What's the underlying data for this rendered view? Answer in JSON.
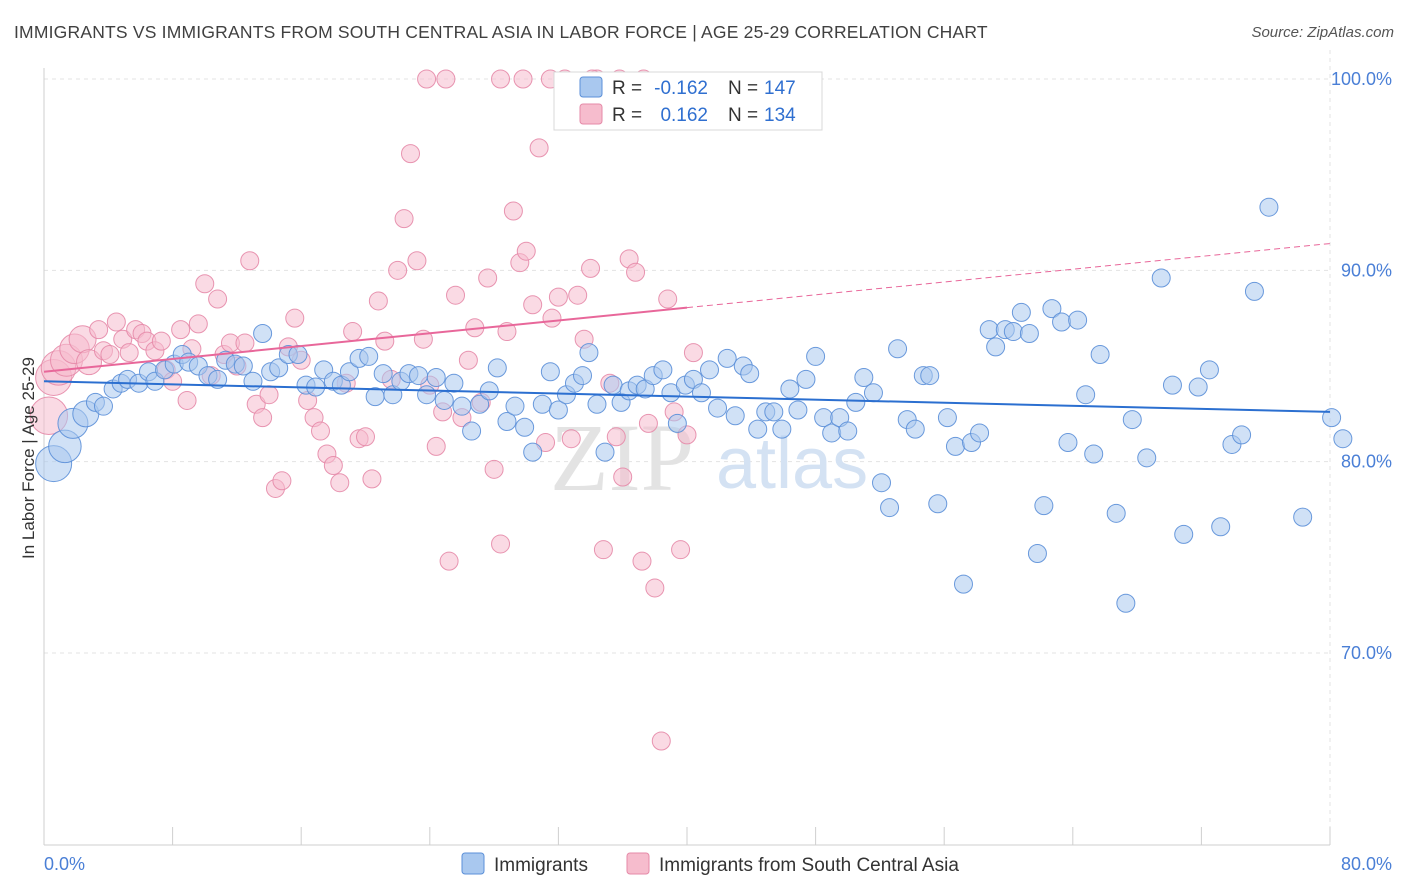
{
  "title": "IMMIGRANTS VS IMMIGRANTS FROM SOUTH CENTRAL ASIA IN LABOR FORCE | AGE 25-29 CORRELATION CHART",
  "source": "Source: ZipAtlas.com",
  "watermark": {
    "zip": "ZIP",
    "atlas": "atlas"
  },
  "colors": {
    "blue_fill": "#a9c8ef",
    "blue_stroke": "#5b8fd8",
    "blue_line": "#2b6fd0",
    "pink_fill": "#f6bccd",
    "pink_stroke": "#e58aa8",
    "pink_line": "#e8679a",
    "tick_text": "#4a7fd6",
    "grid": "#e3e3e3"
  },
  "legend_top": {
    "rows": [
      {
        "r_label": "R =",
        "r_value": "-0.162",
        "n_label": "N =",
        "n_value": "147"
      },
      {
        "r_label": "R =",
        "r_value": "0.162",
        "n_label": "N =",
        "n_value": "134"
      }
    ]
  },
  "chart_data": {
    "type": "scatter",
    "title": "IMMIGRANTS VS IMMIGRANTS FROM SOUTH CENTRAL ASIA IN LABOR FORCE | AGE 25-29 CORRELATION CHART",
    "xlabel": "",
    "ylabel": "In Labor Force | Age 25-29",
    "xlim": [
      0,
      80
    ],
    "ylim": [
      60,
      102
    ],
    "x_tick_labels": [
      "0.0%",
      "80.0%"
    ],
    "y_ticks": [
      70,
      80,
      90,
      100
    ],
    "y_tick_labels": [
      "70.0%",
      "80.0%",
      "90.0%",
      "100.0%"
    ],
    "grid": true,
    "legend_position": "bottom-center",
    "series": [
      {
        "name": "Immigrants",
        "color": "#5b8fd8",
        "r": "-0.162",
        "n": "147",
        "trend": {
          "x": [
            0,
            80
          ],
          "y": [
            84.2,
            82.6
          ],
          "style": "solid"
        },
        "points": [
          [
            0.6,
            79.9
          ],
          [
            1.3,
            80.8
          ],
          [
            1.8,
            82.0
          ],
          [
            2.6,
            82.5
          ],
          [
            3.2,
            83.1
          ],
          [
            3.7,
            82.9
          ],
          [
            4.3,
            83.8
          ],
          [
            4.8,
            84.1
          ],
          [
            5.2,
            84.3
          ],
          [
            5.9,
            84.1
          ],
          [
            6.5,
            84.7
          ],
          [
            6.9,
            84.2
          ],
          [
            7.5,
            84.8
          ],
          [
            8.1,
            85.1
          ],
          [
            8.6,
            85.6
          ],
          [
            9.0,
            85.2
          ],
          [
            9.6,
            85.0
          ],
          [
            10.2,
            84.5
          ],
          [
            10.8,
            84.3
          ],
          [
            11.3,
            85.3
          ],
          [
            11.9,
            85.1
          ],
          [
            12.4,
            85.0
          ],
          [
            13.0,
            84.2
          ],
          [
            13.6,
            86.7
          ],
          [
            14.1,
            84.7
          ],
          [
            14.6,
            84.9
          ],
          [
            15.2,
            85.6
          ],
          [
            15.8,
            85.6
          ],
          [
            16.3,
            84.0
          ],
          [
            16.9,
            83.9
          ],
          [
            17.4,
            84.8
          ],
          [
            18.0,
            84.2
          ],
          [
            18.5,
            84.0
          ],
          [
            19.0,
            84.7
          ],
          [
            19.6,
            85.4
          ],
          [
            20.2,
            85.5
          ],
          [
            20.6,
            83.4
          ],
          [
            21.1,
            84.6
          ],
          [
            21.7,
            83.5
          ],
          [
            22.2,
            84.2
          ],
          [
            22.7,
            84.6
          ],
          [
            23.3,
            84.5
          ],
          [
            23.8,
            83.5
          ],
          [
            24.4,
            84.4
          ],
          [
            24.9,
            83.2
          ],
          [
            25.5,
            84.1
          ],
          [
            26.0,
            82.9
          ],
          [
            26.6,
            81.6
          ],
          [
            27.1,
            83.0
          ],
          [
            27.7,
            83.7
          ],
          [
            28.2,
            84.9
          ],
          [
            28.8,
            82.1
          ],
          [
            29.3,
            82.9
          ],
          [
            29.9,
            81.8
          ],
          [
            30.4,
            80.5
          ],
          [
            31.0,
            83.0
          ],
          [
            31.5,
            84.7
          ],
          [
            32.0,
            82.7
          ],
          [
            32.5,
            83.5
          ],
          [
            33.0,
            84.1
          ],
          [
            33.5,
            84.5
          ],
          [
            33.9,
            85.7
          ],
          [
            34.4,
            83.0
          ],
          [
            34.9,
            80.5
          ],
          [
            35.4,
            84.0
          ],
          [
            35.9,
            83.1
          ],
          [
            36.4,
            83.7
          ],
          [
            36.9,
            84.0
          ],
          [
            37.4,
            83.8
          ],
          [
            37.9,
            84.5
          ],
          [
            38.5,
            84.8
          ],
          [
            39.0,
            83.6
          ],
          [
            39.4,
            82.0
          ],
          [
            39.9,
            84.0
          ],
          [
            40.4,
            84.3
          ],
          [
            40.9,
            83.6
          ],
          [
            41.4,
            84.8
          ],
          [
            41.9,
            82.8
          ],
          [
            42.5,
            85.4
          ],
          [
            43.0,
            82.4
          ],
          [
            43.5,
            85.0
          ],
          [
            43.9,
            84.6
          ],
          [
            44.4,
            81.7
          ],
          [
            44.9,
            82.6
          ],
          [
            45.4,
            82.6
          ],
          [
            45.9,
            81.7
          ],
          [
            46.4,
            83.8
          ],
          [
            46.9,
            82.7
          ],
          [
            47.4,
            84.3
          ],
          [
            48.0,
            85.5
          ],
          [
            48.5,
            82.3
          ],
          [
            49.0,
            81.5
          ],
          [
            49.5,
            82.3
          ],
          [
            50.0,
            81.6
          ],
          [
            50.5,
            83.1
          ],
          [
            51.0,
            84.4
          ],
          [
            51.6,
            83.6
          ],
          [
            52.1,
            78.9
          ],
          [
            52.6,
            77.6
          ],
          [
            53.1,
            85.9
          ],
          [
            53.7,
            82.2
          ],
          [
            54.2,
            81.7
          ],
          [
            54.7,
            84.5
          ],
          [
            55.1,
            84.5
          ],
          [
            55.6,
            77.8
          ],
          [
            56.2,
            82.3
          ],
          [
            56.7,
            80.8
          ],
          [
            57.2,
            73.6
          ],
          [
            57.7,
            81.0
          ],
          [
            58.2,
            81.5
          ],
          [
            58.8,
            86.9
          ],
          [
            59.2,
            86.0
          ],
          [
            59.8,
            86.9
          ],
          [
            60.3,
            86.8
          ],
          [
            60.8,
            87.8
          ],
          [
            61.3,
            86.7
          ],
          [
            61.8,
            75.2
          ],
          [
            62.2,
            77.7
          ],
          [
            62.7,
            88.0
          ],
          [
            63.3,
            87.3
          ],
          [
            63.7,
            81.0
          ],
          [
            64.3,
            87.4
          ],
          [
            64.8,
            83.5
          ],
          [
            65.3,
            80.4
          ],
          [
            65.7,
            85.6
          ],
          [
            66.7,
            77.3
          ],
          [
            67.3,
            72.6
          ],
          [
            67.7,
            82.2
          ],
          [
            68.6,
            80.2
          ],
          [
            69.5,
            89.6
          ],
          [
            70.2,
            84.0
          ],
          [
            70.9,
            76.2
          ],
          [
            71.8,
            83.9
          ],
          [
            72.5,
            84.8
          ],
          [
            73.2,
            76.6
          ],
          [
            73.9,
            80.9
          ],
          [
            74.5,
            81.4
          ],
          [
            75.3,
            88.9
          ],
          [
            76.2,
            93.3
          ],
          [
            78.3,
            77.1
          ],
          [
            80.1,
            82.3
          ],
          [
            80.8,
            81.2
          ]
        ]
      },
      {
        "name": "Immigrants from South Central Asia",
        "color": "#e58aa8",
        "r": "0.162",
        "n": "134",
        "trend": {
          "x": [
            0,
            80
          ],
          "y": [
            84.7,
            91.4
          ],
          "solid_until_x": 40
        },
        "points": [
          [
            0.3,
            82.4
          ],
          [
            0.6,
            84.4
          ],
          [
            0.9,
            84.9
          ],
          [
            1.4,
            85.3
          ],
          [
            1.9,
            85.9
          ],
          [
            2.4,
            86.4
          ],
          [
            2.8,
            85.2
          ],
          [
            3.4,
            86.9
          ],
          [
            3.7,
            85.8
          ],
          [
            4.1,
            85.6
          ],
          [
            4.5,
            87.3
          ],
          [
            4.9,
            86.4
          ],
          [
            5.3,
            85.7
          ],
          [
            5.7,
            86.9
          ],
          [
            6.1,
            86.7
          ],
          [
            6.4,
            86.3
          ],
          [
            6.9,
            85.8
          ],
          [
            7.3,
            86.3
          ],
          [
            7.6,
            84.8
          ],
          [
            8.0,
            84.2
          ],
          [
            8.5,
            86.9
          ],
          [
            8.9,
            83.2
          ],
          [
            9.2,
            85.9
          ],
          [
            9.6,
            87.2
          ],
          [
            10.0,
            89.3
          ],
          [
            10.4,
            84.5
          ],
          [
            10.8,
            88.5
          ],
          [
            11.2,
            85.6
          ],
          [
            11.6,
            86.2
          ],
          [
            12.0,
            85.0
          ],
          [
            12.5,
            86.2
          ],
          [
            12.8,
            90.5
          ],
          [
            13.2,
            83.0
          ],
          [
            13.6,
            82.3
          ],
          [
            14.0,
            83.5
          ],
          [
            14.4,
            78.6
          ],
          [
            14.8,
            79.0
          ],
          [
            15.2,
            86.0
          ],
          [
            15.6,
            87.5
          ],
          [
            16.0,
            85.3
          ],
          [
            16.4,
            83.2
          ],
          [
            16.8,
            82.3
          ],
          [
            17.2,
            81.6
          ],
          [
            17.6,
            80.4
          ],
          [
            18.0,
            79.8
          ],
          [
            18.4,
            78.9
          ],
          [
            18.8,
            84.1
          ],
          [
            19.2,
            86.8
          ],
          [
            19.6,
            81.2
          ],
          [
            20.0,
            81.3
          ],
          [
            20.4,
            79.1
          ],
          [
            20.8,
            88.4
          ],
          [
            21.2,
            86.3
          ],
          [
            21.6,
            84.3
          ],
          [
            22.0,
            90.0
          ],
          [
            22.4,
            92.7
          ],
          [
            22.8,
            96.1
          ],
          [
            23.2,
            90.5
          ],
          [
            23.6,
            86.4
          ],
          [
            24.0,
            84.0
          ],
          [
            24.4,
            80.8
          ],
          [
            24.8,
            82.6
          ],
          [
            25.2,
            74.8
          ],
          [
            25.6,
            88.7
          ],
          [
            26.0,
            82.3
          ],
          [
            26.4,
            85.3
          ],
          [
            26.8,
            87.0
          ],
          [
            27.2,
            83.1
          ],
          [
            27.6,
            89.6
          ],
          [
            28.0,
            79.6
          ],
          [
            28.4,
            75.7
          ],
          [
            28.8,
            86.8
          ],
          [
            29.2,
            93.1
          ],
          [
            29.6,
            90.4
          ],
          [
            30.0,
            91.0
          ],
          [
            30.4,
            88.2
          ],
          [
            30.8,
            96.4
          ],
          [
            31.2,
            81.0
          ],
          [
            31.6,
            87.5
          ],
          [
            32.0,
            88.6
          ],
          [
            32.4,
            100.0
          ],
          [
            32.8,
            81.2
          ],
          [
            33.2,
            88.7
          ],
          [
            33.6,
            86.4
          ],
          [
            34.0,
            90.1
          ],
          [
            34.4,
            100.0
          ],
          [
            34.8,
            75.4
          ],
          [
            35.2,
            84.1
          ],
          [
            35.6,
            81.3
          ],
          [
            36.0,
            79.2
          ],
          [
            36.4,
            90.6
          ],
          [
            36.8,
            89.9
          ],
          [
            37.2,
            74.8
          ],
          [
            37.6,
            82.0
          ],
          [
            38.0,
            73.4
          ],
          [
            38.4,
            65.4
          ],
          [
            38.8,
            88.5
          ],
          [
            39.2,
            82.6
          ],
          [
            39.6,
            75.4
          ],
          [
            40.0,
            81.4
          ],
          [
            40.4,
            85.7
          ],
          [
            23.8,
            100.0
          ],
          [
            25.0,
            100.0
          ],
          [
            28.4,
            100.0
          ],
          [
            29.8,
            100.0
          ],
          [
            31.5,
            100.0
          ],
          [
            34.1,
            100.0
          ],
          [
            35.8,
            100.0
          ],
          [
            37.3,
            100.0
          ]
        ]
      }
    ]
  },
  "legend_bottom": [
    {
      "label": "Immigrants"
    },
    {
      "label": "Immigrants from South Central Asia"
    }
  ]
}
